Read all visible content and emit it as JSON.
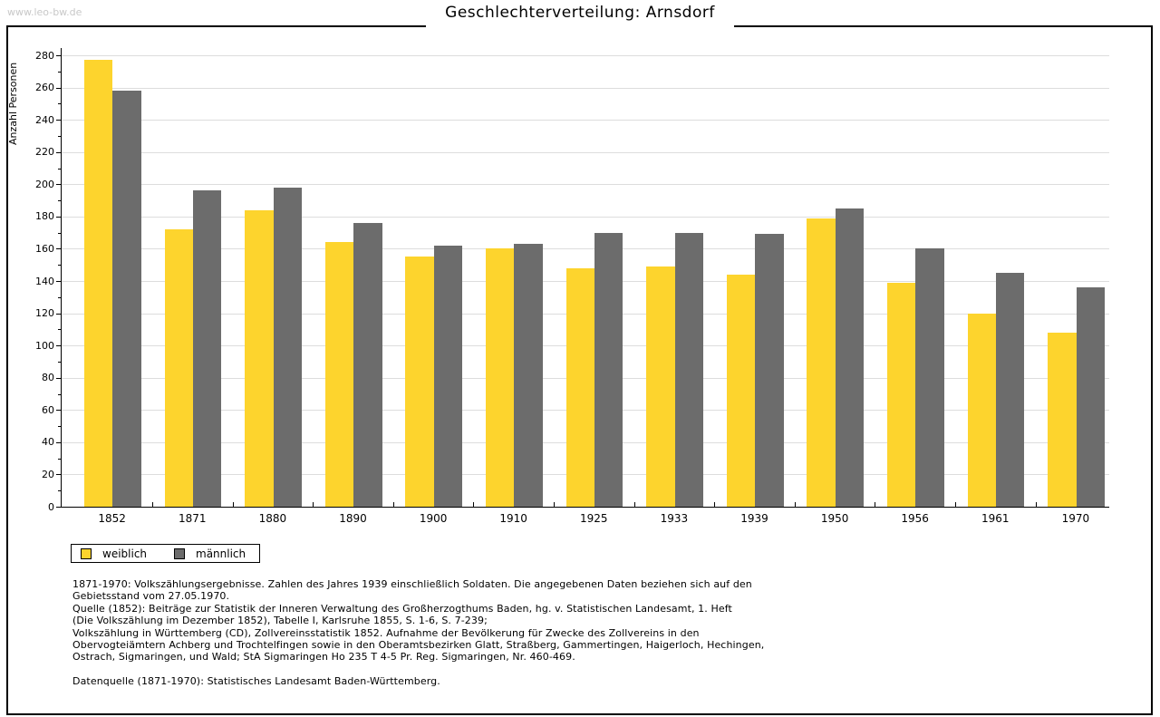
{
  "watermark": "www.leo-bw.de",
  "title": "Geschlechterverteilung: Arnsdorf",
  "chart_data": {
    "type": "bar",
    "title": "Geschlechterverteilung: Arnsdorf",
    "xlabel": "",
    "ylabel": "Anzahl Personen",
    "ylim": [
      0,
      280
    ],
    "ytick_step": 20,
    "ytick_minor_step": 10,
    "grid": true,
    "legend_position": "bottom-left",
    "categories": [
      "1852",
      "1871",
      "1880",
      "1890",
      "1900",
      "1910",
      "1925",
      "1933",
      "1939",
      "1950",
      "1956",
      "1961",
      "1970"
    ],
    "series": [
      {
        "name": "weiblich",
        "color": "#FDD42D",
        "values": [
          277,
          172,
          184,
          164,
          155,
          160,
          148,
          149,
          144,
          179,
          139,
          120,
          108
        ]
      },
      {
        "name": "männlich",
        "color": "#6C6C6C",
        "values": [
          258,
          196,
          198,
          176,
          162,
          163,
          170,
          170,
          169,
          185,
          160,
          145,
          136
        ]
      }
    ]
  },
  "footnotes": {
    "lines": [
      "1871-1970: Volkszählungsergebnisse. Zahlen des Jahres 1939 einschließlich Soldaten. Die angegebenen Daten beziehen sich auf den",
      "Gebietsstand vom 27.05.1970.",
      "Quelle (1852): Beiträge zur Statistik der Inneren Verwaltung des Großherzogthums Baden, hg. v. Statistischen Landesamt, 1. Heft",
      "(Die Volkszählung im Dezember 1852), Tabelle I, Karlsruhe 1855, S. 1-6, S. 7-239;",
      "Volkszählung in Württemberg (CD), Zollvereinsstatistik 1852. Aufnahme der Bevölkerung für Zwecke des Zollvereins in den",
      "Obervogteiämtern Achberg und Trochtelfingen sowie in den Oberamtsbezirken Glatt, Straßberg, Gammertingen, Haigerloch, Hechingen,",
      "Ostrach, Sigmaringen, und Wald; StA Sigmaringen Ho 235 T 4-5 Pr. Reg. Sigmaringen, Nr. 460-469.",
      "",
      "Datenquelle (1871-1970): Statistisches Landesamt Baden-Württemberg."
    ]
  },
  "colors": {
    "weiblich": "#FDD42D",
    "maennlich": "#6C6C6C",
    "gridline": "#DDDDDD",
    "axis": "#000000",
    "watermark": "#C8C8C8"
  }
}
